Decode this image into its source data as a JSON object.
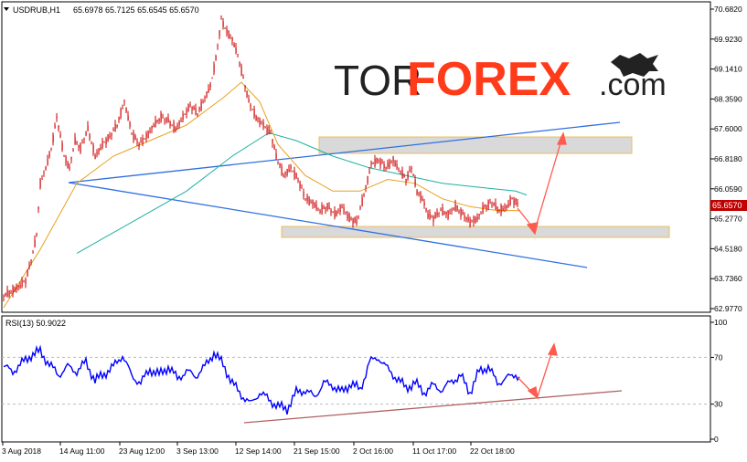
{
  "header": {
    "symbol_label": "USDRUB,H1",
    "ohlc_label": "65.6978 65.7125 65.6545 65.6570"
  },
  "watermark": {
    "prefix": "TOR",
    "brand": "FOREX",
    "suffix": ".com"
  },
  "rsi_panel": {
    "label": "RSI(13) 50.9022"
  },
  "colors": {
    "candles": "#cc0000",
    "ma_fast": "#e8a020",
    "ma_slow": "#20b0a0",
    "trendline": "#2f6fe0",
    "rsi_line": "#0000ff",
    "rsi_trendline": "#b06060",
    "arrows": "#ff5a4e",
    "zone_fill": "#d9d9d9",
    "zone_border": "#e8c060",
    "price_tag_bg": "#c00000"
  },
  "chart_data": [
    {
      "type": "candlestick",
      "symbol": "USDRUB",
      "timeframe": "H1",
      "ylim": [
        62.977,
        70.682
      ],
      "price_axis_ticks": [
        "70.6820",
        "69.9230",
        "69.1410",
        "68.3590",
        "67.6000",
        "66.8180",
        "66.0590",
        "65.2770",
        "64.5180",
        "63.7360",
        "62.9770"
      ],
      "current_price": "65.6570",
      "time_axis_labels": [
        "3 Aug 2018",
        "14 Aug 11:00",
        "23 Aug 12:00",
        "3 Sep 13:00",
        "12 Sep 14:00",
        "21 Sep 15:00",
        "2 Oct 16:00",
        "11 Oct 17:00",
        "22 Oct 18:00"
      ],
      "close_path": [
        [
          0,
          63.3
        ],
        [
          14,
          63.5
        ],
        [
          24,
          63.7
        ],
        [
          32,
          64.4
        ],
        [
          36,
          64.9
        ],
        [
          40,
          66.2
        ],
        [
          46,
          66.6
        ],
        [
          52,
          67.1
        ],
        [
          58,
          67.9
        ],
        [
          62,
          67.4
        ],
        [
          66,
          66.9
        ],
        [
          72,
          66.6
        ],
        [
          78,
          67.3
        ],
        [
          84,
          67.1
        ],
        [
          92,
          67.6
        ],
        [
          100,
          66.9
        ],
        [
          108,
          67.2
        ],
        [
          116,
          67.4
        ],
        [
          124,
          67.7
        ],
        [
          132,
          68.3
        ],
        [
          140,
          67.5
        ],
        [
          148,
          67.2
        ],
        [
          156,
          67.4
        ],
        [
          164,
          67.7
        ],
        [
          172,
          67.9
        ],
        [
          180,
          67.8
        ],
        [
          188,
          67.6
        ],
        [
          196,
          67.9
        ],
        [
          204,
          68.2
        ],
        [
          212,
          68.0
        ],
        [
          218,
          68.3
        ],
        [
          226,
          68.7
        ],
        [
          232,
          69.4
        ],
        [
          238,
          70.4
        ],
        [
          244,
          70.1
        ],
        [
          250,
          69.9
        ],
        [
          256,
          69.5
        ],
        [
          262,
          68.9
        ],
        [
          268,
          68.3
        ],
        [
          276,
          67.9
        ],
        [
          284,
          67.7
        ],
        [
          292,
          67.5
        ],
        [
          298,
          66.9
        ],
        [
          306,
          66.4
        ],
        [
          314,
          66.6
        ],
        [
          322,
          66.3
        ],
        [
          330,
          65.8
        ],
        [
          338,
          65.7
        ],
        [
          346,
          65.5
        ],
        [
          354,
          65.6
        ],
        [
          362,
          65.4
        ],
        [
          370,
          65.6
        ],
        [
          378,
          65.3
        ],
        [
          386,
          65.2
        ],
        [
          394,
          65.9
        ],
        [
          402,
          66.7
        ],
        [
          410,
          66.8
        ],
        [
          418,
          66.6
        ],
        [
          426,
          66.8
        ],
        [
          434,
          66.5
        ],
        [
          440,
          66.3
        ],
        [
          446,
          66.6
        ],
        [
          452,
          66.0
        ],
        [
          458,
          65.8
        ],
        [
          464,
          65.4
        ],
        [
          470,
          65.3
        ],
        [
          478,
          65.5
        ],
        [
          486,
          65.4
        ],
        [
          494,
          65.6
        ],
        [
          502,
          65.4
        ],
        [
          510,
          65.2
        ],
        [
          518,
          65.3
        ],
        [
          526,
          65.6
        ],
        [
          534,
          65.7
        ],
        [
          542,
          65.5
        ],
        [
          550,
          65.6
        ],
        [
          556,
          65.8
        ],
        [
          562,
          65.66
        ]
      ],
      "ma_fast_path": [
        [
          0,
          63.0
        ],
        [
          40,
          64.5
        ],
        [
          80,
          66.2
        ],
        [
          120,
          66.9
        ],
        [
          160,
          67.3
        ],
        [
          200,
          67.7
        ],
        [
          240,
          68.4
        ],
        [
          260,
          68.8
        ],
        [
          280,
          68.3
        ],
        [
          300,
          67.2
        ],
        [
          330,
          66.4
        ],
        [
          360,
          66.0
        ],
        [
          390,
          66.0
        ],
        [
          420,
          66.3
        ],
        [
          450,
          66.2
        ],
        [
          480,
          65.8
        ],
        [
          510,
          65.6
        ],
        [
          540,
          65.5
        ],
        [
          565,
          65.5
        ]
      ],
      "ma_slow_path": [
        [
          80,
          64.4
        ],
        [
          140,
          65.2
        ],
        [
          200,
          66.0
        ],
        [
          250,
          66.9
        ],
        [
          290,
          67.5
        ],
        [
          320,
          67.3
        ],
        [
          360,
          66.9
        ],
        [
          400,
          66.6
        ],
        [
          440,
          66.4
        ],
        [
          480,
          66.2
        ],
        [
          520,
          66.1
        ],
        [
          560,
          66.0
        ],
        [
          572,
          65.9
        ]
      ]
    },
    {
      "type": "line",
      "indicator": "RSI(13)",
      "ylim": [
        0,
        100
      ],
      "levels": [
        30,
        70
      ],
      "axis_ticks": [
        "100",
        "70",
        "30",
        "0"
      ],
      "current_value": "50.9022",
      "path": [
        [
          0,
          62
        ],
        [
          10,
          58
        ],
        [
          20,
          65
        ],
        [
          30,
          72
        ],
        [
          40,
          75
        ],
        [
          50,
          64
        ],
        [
          60,
          55
        ],
        [
          70,
          62
        ],
        [
          80,
          58
        ],
        [
          90,
          66
        ],
        [
          100,
          50
        ],
        [
          110,
          56
        ],
        [
          120,
          62
        ],
        [
          130,
          72
        ],
        [
          140,
          54
        ],
        [
          150,
          48
        ],
        [
          160,
          60
        ],
        [
          170,
          55
        ],
        [
          180,
          62
        ],
        [
          190,
          52
        ],
        [
          200,
          58
        ],
        [
          210,
          54
        ],
        [
          220,
          62
        ],
        [
          230,
          74
        ],
        [
          240,
          64
        ],
        [
          250,
          48
        ],
        [
          260,
          38
        ],
        [
          270,
          30
        ],
        [
          280,
          40
        ],
        [
          290,
          34
        ],
        [
          300,
          28
        ],
        [
          310,
          26
        ],
        [
          320,
          40
        ],
        [
          330,
          42
        ],
        [
          340,
          36
        ],
        [
          350,
          48
        ],
        [
          360,
          46
        ],
        [
          370,
          40
        ],
        [
          380,
          48
        ],
        [
          390,
          42
        ],
        [
          400,
          66
        ],
        [
          410,
          70
        ],
        [
          420,
          60
        ],
        [
          430,
          52
        ],
        [
          440,
          44
        ],
        [
          450,
          48
        ],
        [
          460,
          40
        ],
        [
          470,
          46
        ],
        [
          480,
          42
        ],
        [
          490,
          50
        ],
        [
          500,
          54
        ],
        [
          510,
          40
        ],
        [
          520,
          58
        ],
        [
          530,
          62
        ],
        [
          540,
          48
        ],
        [
          550,
          52
        ],
        [
          560,
          56
        ],
        [
          565,
          51
        ]
      ]
    }
  ]
}
